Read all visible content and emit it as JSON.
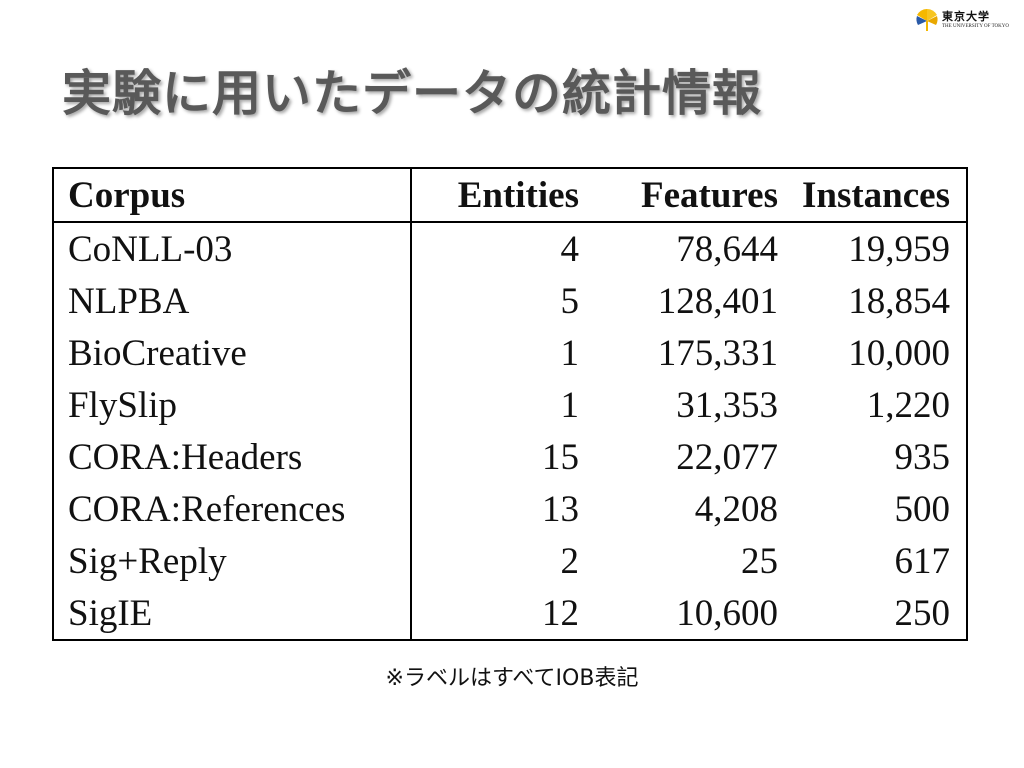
{
  "logo": {
    "icon": "ginkgo-leaf-icon",
    "name_ja": "東京大学",
    "name_en": "THE UNIVERSITY OF TOKYO",
    "colors": {
      "yellow": "#f5b800",
      "blue": "#2a5aa8"
    }
  },
  "slide": {
    "title": "実験に用いたデータの統計情報",
    "title_color": "#595959"
  },
  "table": {
    "headers": {
      "corpus": "Corpus",
      "entities": "Entities",
      "features": "Features",
      "instances": "Instances"
    },
    "rows": [
      {
        "corpus": "CoNLL-03",
        "entities": "4",
        "features": "78,644",
        "instances": "19,959"
      },
      {
        "corpus": "NLPBA",
        "entities": "5",
        "features": "128,401",
        "instances": "18,854"
      },
      {
        "corpus": "BioCreative",
        "entities": "1",
        "features": "175,331",
        "instances": "10,000"
      },
      {
        "corpus": "FlySlip",
        "entities": "1",
        "features": "31,353",
        "instances": "1,220"
      },
      {
        "corpus": "CORA:Headers",
        "entities": "15",
        "features": "22,077",
        "instances": "935"
      },
      {
        "corpus": "CORA:References",
        "entities": "13",
        "features": "4,208",
        "instances": "500"
      },
      {
        "corpus": "Sig+Reply",
        "entities": "2",
        "features": "25",
        "instances": "617"
      },
      {
        "corpus": "SigIE",
        "entities": "12",
        "features": "10,600",
        "instances": "250"
      }
    ]
  },
  "note": "※ラベルはすべてIOB表記"
}
